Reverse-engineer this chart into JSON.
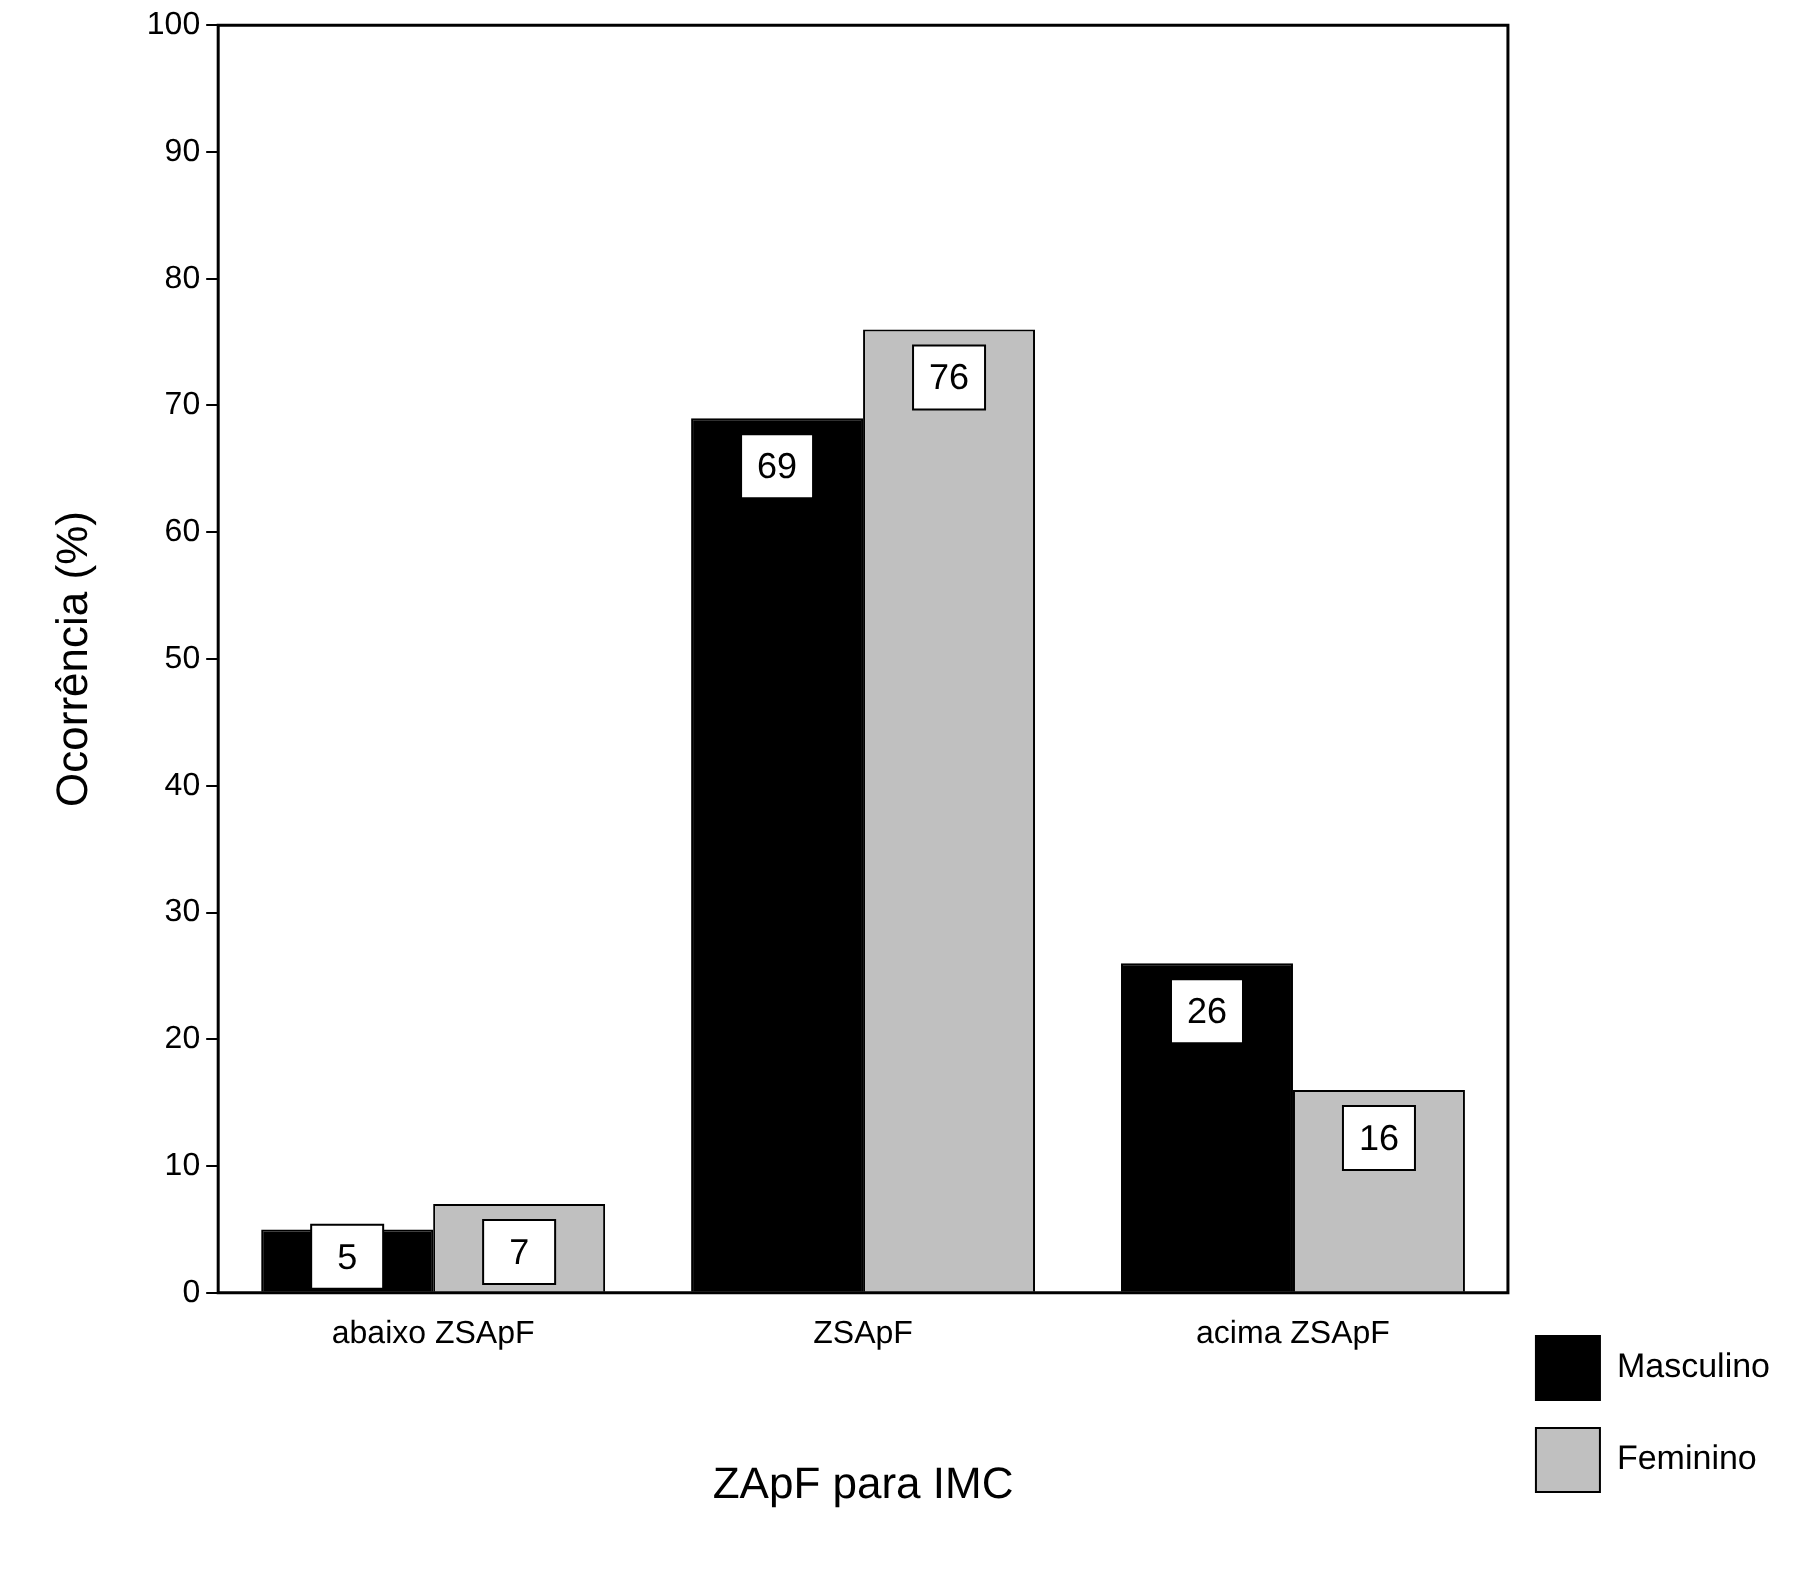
{
  "chart_data": {
    "type": "bar",
    "xlabel": "ZApF para IMC",
    "ylabel": "Ocorrência (%)",
    "categories": [
      "abaixo ZSApF",
      "ZSApF",
      "acima ZSApF"
    ],
    "series": [
      {
        "name": "Masculino",
        "color": "#000000",
        "values": [
          5,
          69,
          26
        ]
      },
      {
        "name": "Feminino",
        "color": "#c0c0c0",
        "values": [
          7,
          76,
          16
        ]
      }
    ],
    "ylim": [
      0,
      100
    ],
    "yticks": [
      0,
      10,
      20,
      30,
      40,
      50,
      60,
      70,
      80,
      90,
      100
    ],
    "grid": false,
    "legend": "right",
    "data_labels": true
  }
}
